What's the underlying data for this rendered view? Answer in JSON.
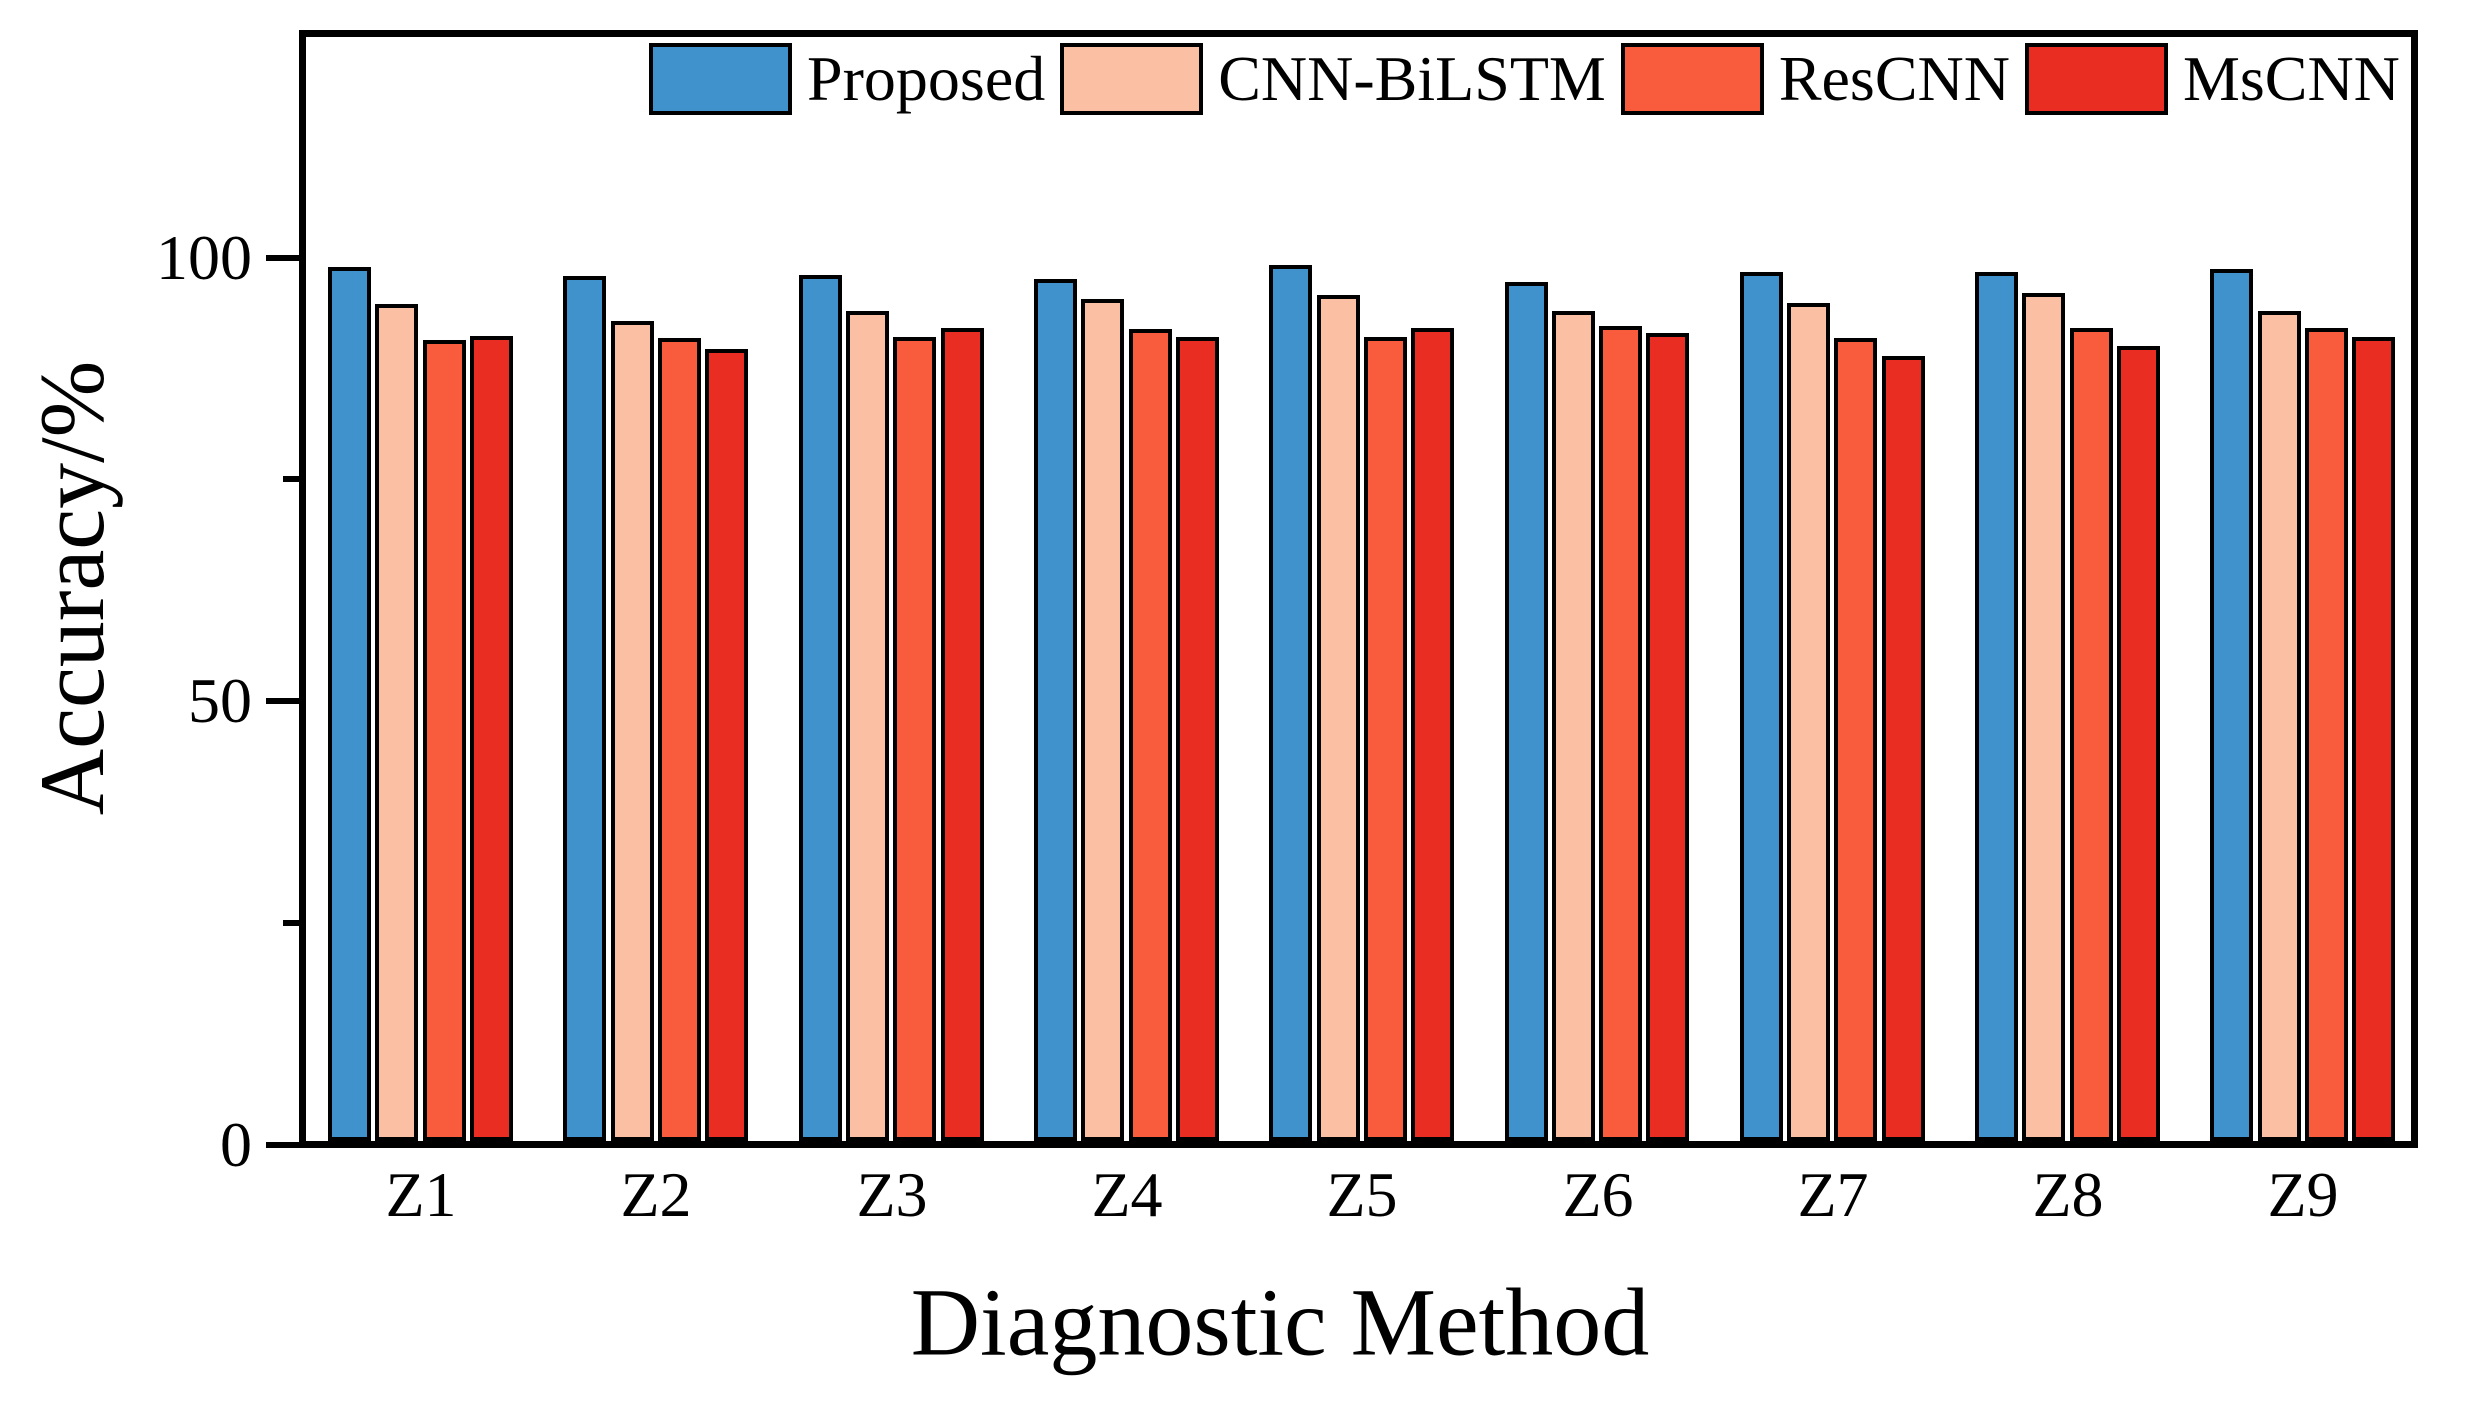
{
  "chart_data": {
    "type": "bar",
    "title": "",
    "xlabel": "Diagnostic Method",
    "ylabel": "Accuracy/%",
    "categories": [
      "Z1",
      "Z2",
      "Z3",
      "Z4",
      "Z5",
      "Z6",
      "Z7",
      "Z8",
      "Z9"
    ],
    "series": [
      {
        "name": "Proposed",
        "color": "#3f92cb",
        "values": [
          98.9,
          97.9,
          98.0,
          97.6,
          99.2,
          97.2,
          98.4,
          98.4,
          98.7
        ]
      },
      {
        "name": "CNN-BiLSTM",
        "color": "#fbbfa4",
        "values": [
          94.8,
          92.8,
          94.0,
          95.3,
          95.8,
          94.0,
          94.9,
          96.0,
          94.0
        ]
      },
      {
        "name": "ResCNN",
        "color": "#f85c3c",
        "values": [
          90.7,
          90.9,
          91.0,
          91.9,
          91.0,
          92.3,
          90.9,
          92.0,
          92.0
        ]
      },
      {
        "name": "MsCNN",
        "color": "#e92d22",
        "values": [
          91.2,
          89.7,
          92.0,
          91.0,
          92.0,
          91.5,
          88.9,
          90.0,
          91.0
        ]
      }
    ],
    "ylim": [
      0,
      125
    ],
    "yticks": {
      "major": [
        {
          "value": 0,
          "label": "0"
        },
        {
          "value": 50,
          "label": "50"
        },
        {
          "value": 100,
          "label": "100"
        }
      ],
      "minor": [
        25,
        75
      ]
    },
    "grid": false,
    "legend_position": "top-inside",
    "bar_edge_color": "#000000",
    "frame_color": "#000000",
    "background": "#ffffff"
  }
}
